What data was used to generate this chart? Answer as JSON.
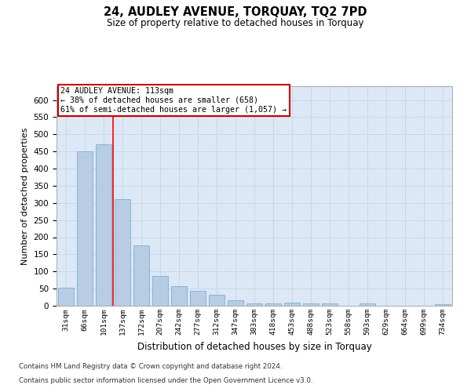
{
  "title": "24, AUDLEY AVENUE, TORQUAY, TQ2 7PD",
  "subtitle": "Size of property relative to detached houses in Torquay",
  "xlabel": "Distribution of detached houses by size in Torquay",
  "ylabel": "Number of detached properties",
  "categories": [
    "31sqm",
    "66sqm",
    "101sqm",
    "137sqm",
    "172sqm",
    "207sqm",
    "242sqm",
    "277sqm",
    "312sqm",
    "347sqm",
    "383sqm",
    "418sqm",
    "453sqm",
    "488sqm",
    "523sqm",
    "558sqm",
    "593sqm",
    "629sqm",
    "664sqm",
    "699sqm",
    "734sqm"
  ],
  "values": [
    52,
    450,
    470,
    310,
    175,
    88,
    58,
    43,
    31,
    15,
    8,
    8,
    9,
    7,
    6,
    1,
    6,
    1,
    1,
    1,
    4
  ],
  "bar_color": "#b8cce4",
  "bar_edge_color": "#7ab0d4",
  "grid_color": "#c8d8e8",
  "bg_color": "#dce8f5",
  "red_line_x": 2.5,
  "annotation_line1": "24 AUDLEY AVENUE: 113sqm",
  "annotation_line2": "← 38% of detached houses are smaller (658)",
  "annotation_line3": "61% of semi-detached houses are larger (1,057) →",
  "annotation_box_color": "#cc0000",
  "ylim": [
    0,
    640
  ],
  "yticks": [
    0,
    50,
    100,
    150,
    200,
    250,
    300,
    350,
    400,
    450,
    500,
    550,
    600
  ],
  "footnote1": "Contains HM Land Registry data © Crown copyright and database right 2024.",
  "footnote2": "Contains public sector information licensed under the Open Government Licence v3.0."
}
